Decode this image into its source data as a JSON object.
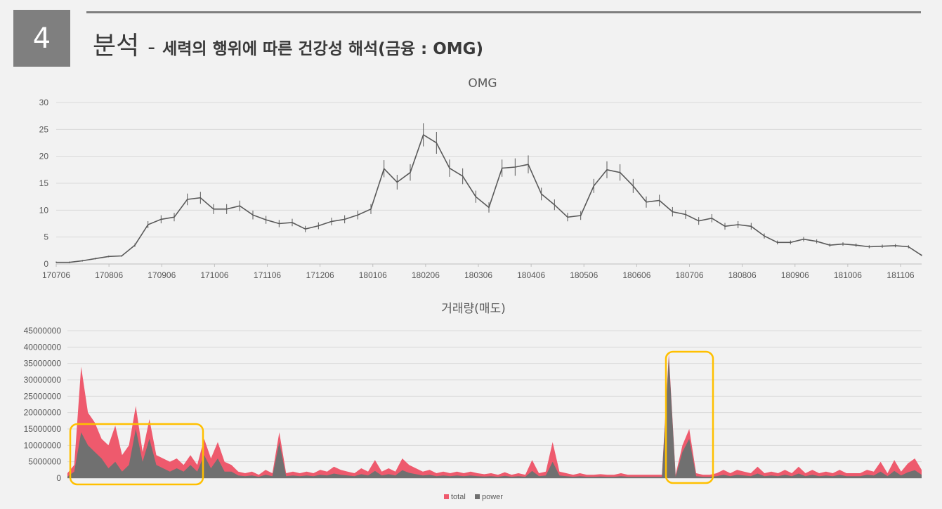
{
  "slide": {
    "number": "4",
    "title_main": "분석",
    "title_dash": "-",
    "title_sub": "세력의 행위에 따른 건강성 해석(금융 : OMG)"
  },
  "colors": {
    "price": "#595959",
    "total": "#ee5a6d",
    "power": "#707070",
    "highlight": "#ffc000",
    "grid": "#d9d9d9"
  },
  "chart_data": [
    {
      "type": "line",
      "title": "OMG",
      "xlabel": "",
      "ylabel": "",
      "ylim": [
        0,
        30
      ],
      "y_ticks": [
        "0",
        "5",
        "10",
        "15",
        "20",
        "25",
        "30"
      ],
      "x_ticks": [
        "170706",
        "170806",
        "170906",
        "171006",
        "171106",
        "171206",
        "180106",
        "180206",
        "180306",
        "180406",
        "180506",
        "180606",
        "180706",
        "180806",
        "180906",
        "181006",
        "181106"
      ],
      "grid": true,
      "series": [
        {
          "values": [
            0.3,
            0.3,
            0.6,
            1.0,
            1.4,
            1.5,
            3.5,
            7.3,
            8.3,
            8.7,
            12.0,
            12.3,
            10.2,
            10.2,
            10.8,
            9.1,
            8.2,
            7.5,
            7.7,
            6.5,
            7.1,
            7.9,
            8.3,
            9.1,
            10.2,
            17.7,
            15.2,
            17.0,
            24.0,
            22.5,
            17.8,
            16.3,
            12.5,
            10.5,
            17.8,
            18.0,
            18.5,
            13.0,
            11.0,
            8.7,
            9.0,
            14.5,
            17.5,
            17.0,
            14.5,
            11.5,
            11.8,
            9.7,
            9.2,
            8.0,
            8.5,
            7.0,
            7.3,
            7.0,
            5.2,
            4.0,
            4.0,
            4.6,
            4.2,
            3.5,
            3.7,
            3.5,
            3.2,
            3.3,
            3.4,
            3.2,
            1.6
          ]
        }
      ]
    },
    {
      "type": "area",
      "title": "거래량(매도)",
      "xlabel": "",
      "ylabel": "",
      "ylim": [
        0,
        45000000
      ],
      "y_ticks": [
        "0",
        "5000000",
        "10000000",
        "15000000",
        "20000000",
        "25000000",
        "30000000",
        "35000000",
        "40000000",
        "45000000"
      ],
      "grid": true,
      "legend": "bottom",
      "series": [
        {
          "name": "total",
          "values": [
            1500000,
            4000000,
            34000000,
            20000000,
            17000000,
            12000000,
            10000000,
            16000000,
            7000000,
            10000000,
            22000000,
            8000000,
            18000000,
            7000000,
            6000000,
            5000000,
            6000000,
            4000000,
            7000000,
            4000000,
            12000000,
            6000000,
            11000000,
            5000000,
            4000000,
            2000000,
            1500000,
            2000000,
            1000000,
            2500000,
            1500000,
            14000000,
            1500000,
            2000000,
            1500000,
            2000000,
            1500000,
            2500000,
            2000000,
            3500000,
            2500000,
            2000000,
            1500000,
            3000000,
            2000000,
            5500000,
            2000000,
            3000000,
            2000000,
            6000000,
            4000000,
            3000000,
            2000000,
            2500000,
            1500000,
            2000000,
            1500000,
            2000000,
            1500000,
            2000000,
            1500000,
            1200000,
            1500000,
            1000000,
            1800000,
            1000000,
            1500000,
            1000000,
            5500000,
            1500000,
            2000000,
            11000000,
            2000000,
            1500000,
            1000000,
            1500000,
            1000000,
            1000000,
            1200000,
            1000000,
            1000000,
            1500000,
            1000000,
            1000000,
            1000000,
            1000000,
            1000000,
            1000000,
            38000000,
            1000000,
            10000000,
            15000000,
            1500000,
            1000000,
            1000000,
            1500000,
            2500000,
            1500000,
            2500000,
            2000000,
            1500000,
            3500000,
            1500000,
            2000000,
            1500000,
            2500000,
            1500000,
            3500000,
            1500000,
            2500000,
            1500000,
            2000000,
            1500000,
            2500000,
            1500000,
            1500000,
            1500000,
            2500000,
            2000000,
            5000000,
            1500000,
            5500000,
            2000000,
            4500000,
            6000000,
            2500000
          ]
        },
        {
          "name": "power",
          "values": [
            500000,
            2000000,
            14000000,
            10000000,
            8000000,
            6000000,
            3000000,
            5000000,
            2000000,
            4000000,
            15000000,
            5000000,
            12000000,
            4000000,
            3000000,
            2000000,
            3000000,
            2000000,
            4000000,
            2000000,
            7000000,
            3000000,
            6000000,
            2000000,
            2000000,
            800000,
            600000,
            800000,
            400000,
            1000000,
            600000,
            11000000,
            600000,
            800000,
            600000,
            800000,
            600000,
            1000000,
            800000,
            1400000,
            1000000,
            800000,
            600000,
            1200000,
            800000,
            2200000,
            800000,
            1200000,
            800000,
            2400000,
            1600000,
            1200000,
            800000,
            1000000,
            600000,
            800000,
            600000,
            800000,
            600000,
            800000,
            600000,
            500000,
            600000,
            400000,
            700000,
            400000,
            600000,
            400000,
            2200000,
            600000,
            800000,
            5000000,
            800000,
            600000,
            400000,
            600000,
            400000,
            400000,
            500000,
            400000,
            400000,
            600000,
            400000,
            400000,
            400000,
            400000,
            400000,
            400000,
            37000000,
            400000,
            8000000,
            12000000,
            600000,
            400000,
            400000,
            600000,
            1000000,
            600000,
            1000000,
            800000,
            600000,
            1400000,
            600000,
            800000,
            600000,
            1000000,
            600000,
            1400000,
            600000,
            1000000,
            600000,
            800000,
            600000,
            1000000,
            600000,
            600000,
            600000,
            1000000,
            800000,
            2000000,
            600000,
            2200000,
            800000,
            1800000,
            2400000,
            1000000
          ]
        }
      ]
    }
  ]
}
